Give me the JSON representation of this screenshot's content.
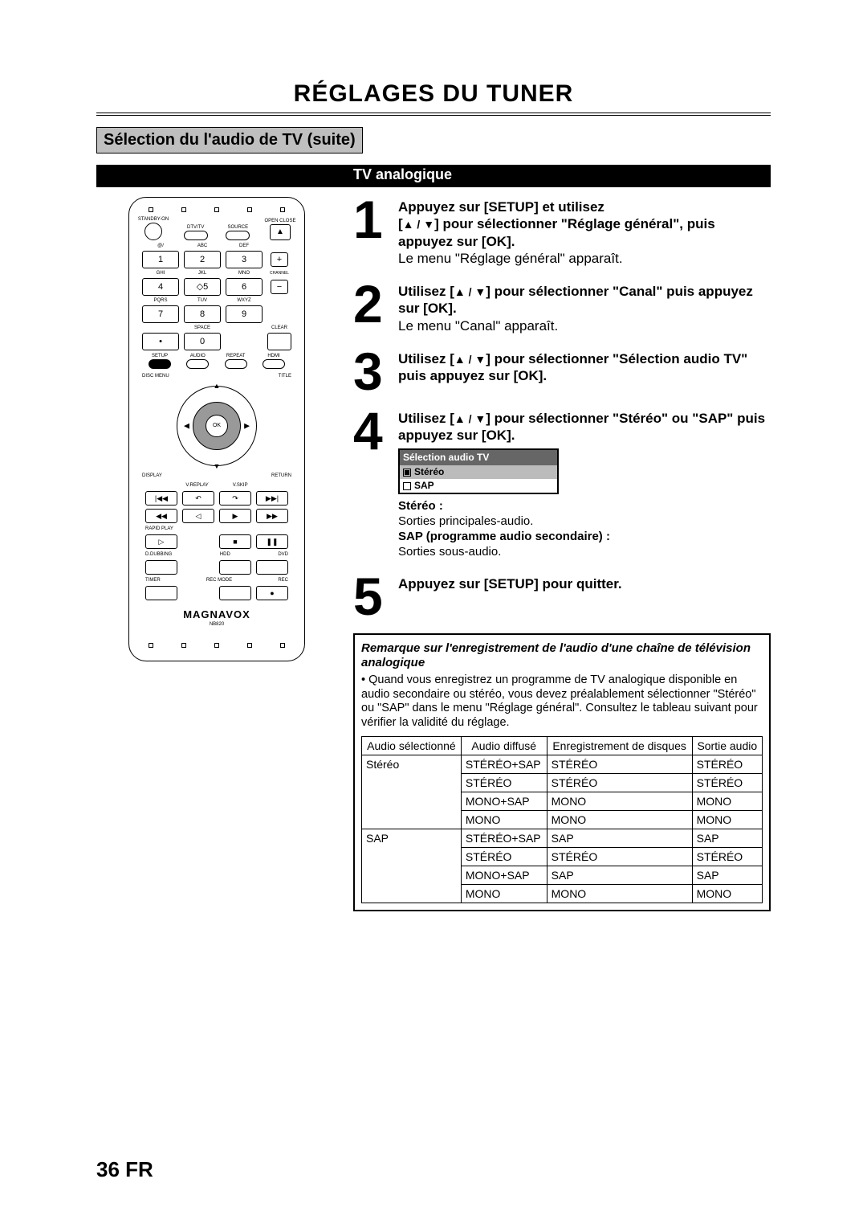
{
  "title": "RÉGLAGES DU TUNER",
  "subtitle": "Sélection du l'audio de TV (suite)",
  "bar_label": "TV analogique",
  "remote": {
    "row1": [
      "STANDBY-ON",
      "DTV/TV",
      "SOURCE",
      "OPEN CLOSE"
    ],
    "numlabels": [
      "@/",
      "ABC",
      "DEF",
      "GHI",
      "JKL",
      "MNO",
      "PQRS",
      "TUV",
      "WXYZ",
      "SPACE",
      "CLEAR"
    ],
    "nums": [
      "1",
      "2",
      "3",
      "4",
      "5",
      "6",
      "7",
      "8",
      "9",
      "0"
    ],
    "channel": "CHANNEL",
    "func1": [
      "SETUP",
      "AUDIO",
      "REPEAT",
      "HDMI"
    ],
    "discmenu": "DISC MENU",
    "titlelbl": "TITLE",
    "ok": "OK",
    "display": "DISPLAY",
    "returnlbl": "RETURN",
    "vreplay": "V.REPLAY",
    "vskip": "V.SKIP",
    "rapid": "RAPID PLAY",
    "dubbing": "D.DUBBING",
    "hdd": "HDD",
    "dvd": "DVD",
    "timer": "TIMER",
    "recmode": "REC MODE",
    "rec": "REC",
    "brand": "MAGNAVOX",
    "model": "NB820"
  },
  "steps": [
    {
      "num": "1",
      "bold_a": "Appuyez sur [SETUP] et utilisez",
      "bold_b": "[",
      "bold_c": "] pour sélectionner \"Réglage général\", puis appuyez sur [OK].",
      "note": "Le menu \"Réglage général\" apparaît."
    },
    {
      "num": "2",
      "bold_a": "Utilisez [",
      "bold_b": "] pour sélectionner \"Canal\" puis appuyez sur [OK].",
      "note": "Le menu \"Canal\" apparaît."
    },
    {
      "num": "3",
      "bold_a": "Utilisez [",
      "bold_b": "] pour sélectionner \"Sélection audio TV\" puis appuyez sur [OK]."
    },
    {
      "num": "4",
      "bold_a": "Utilisez [",
      "bold_b": "] pour sélectionner \"Stéréo\" ou \"SAP\" puis appuyez sur [OK]."
    },
    {
      "num": "5",
      "bold_a": "Appuyez sur [SETUP] pour quitter."
    }
  ],
  "menu": {
    "title": "Sélection audio TV",
    "opt1": "Stéréo",
    "opt2": "SAP"
  },
  "defs": {
    "stereo_lbl": "Stéréo :",
    "stereo_txt": "Sorties principales-audio.",
    "sap_lbl": "SAP (programme audio secondaire) :",
    "sap_txt": "Sorties sous-audio."
  },
  "remark": {
    "title": "Remarque sur l'enregistrement de l'audio d'une chaîne de télévision analogique",
    "body": "Quand vous enregistrez un programme de TV analogique disponible en audio secondaire ou stéréo, vous devez préalablement sélectionner \"Stéréo\" ou \"SAP\" dans le menu \"Réglage général\". Consultez le tableau suivant pour vérifier la validité du réglage."
  },
  "table": {
    "headers": [
      "Audio sélectionné",
      "Audio diffusé",
      "Enregistrement de disques",
      "Sortie audio"
    ],
    "groups": [
      {
        "sel": "Stéréo",
        "rows": [
          [
            "STÉRÉO+SAP",
            "STÉRÉO",
            "STÉRÉO"
          ],
          [
            "STÉRÉO",
            "STÉRÉO",
            "STÉRÉO"
          ],
          [
            "MONO+SAP",
            "MONO",
            "MONO"
          ],
          [
            "MONO",
            "MONO",
            "MONO"
          ]
        ]
      },
      {
        "sel": "SAP",
        "rows": [
          [
            "STÉRÉO+SAP",
            "SAP",
            "SAP"
          ],
          [
            "STÉRÉO",
            "STÉRÉO",
            "STÉRÉO"
          ],
          [
            "MONO+SAP",
            "SAP",
            "SAP"
          ],
          [
            "MONO",
            "MONO",
            "MONO"
          ]
        ]
      }
    ]
  },
  "pagenum": "36",
  "pagelang": "FR"
}
